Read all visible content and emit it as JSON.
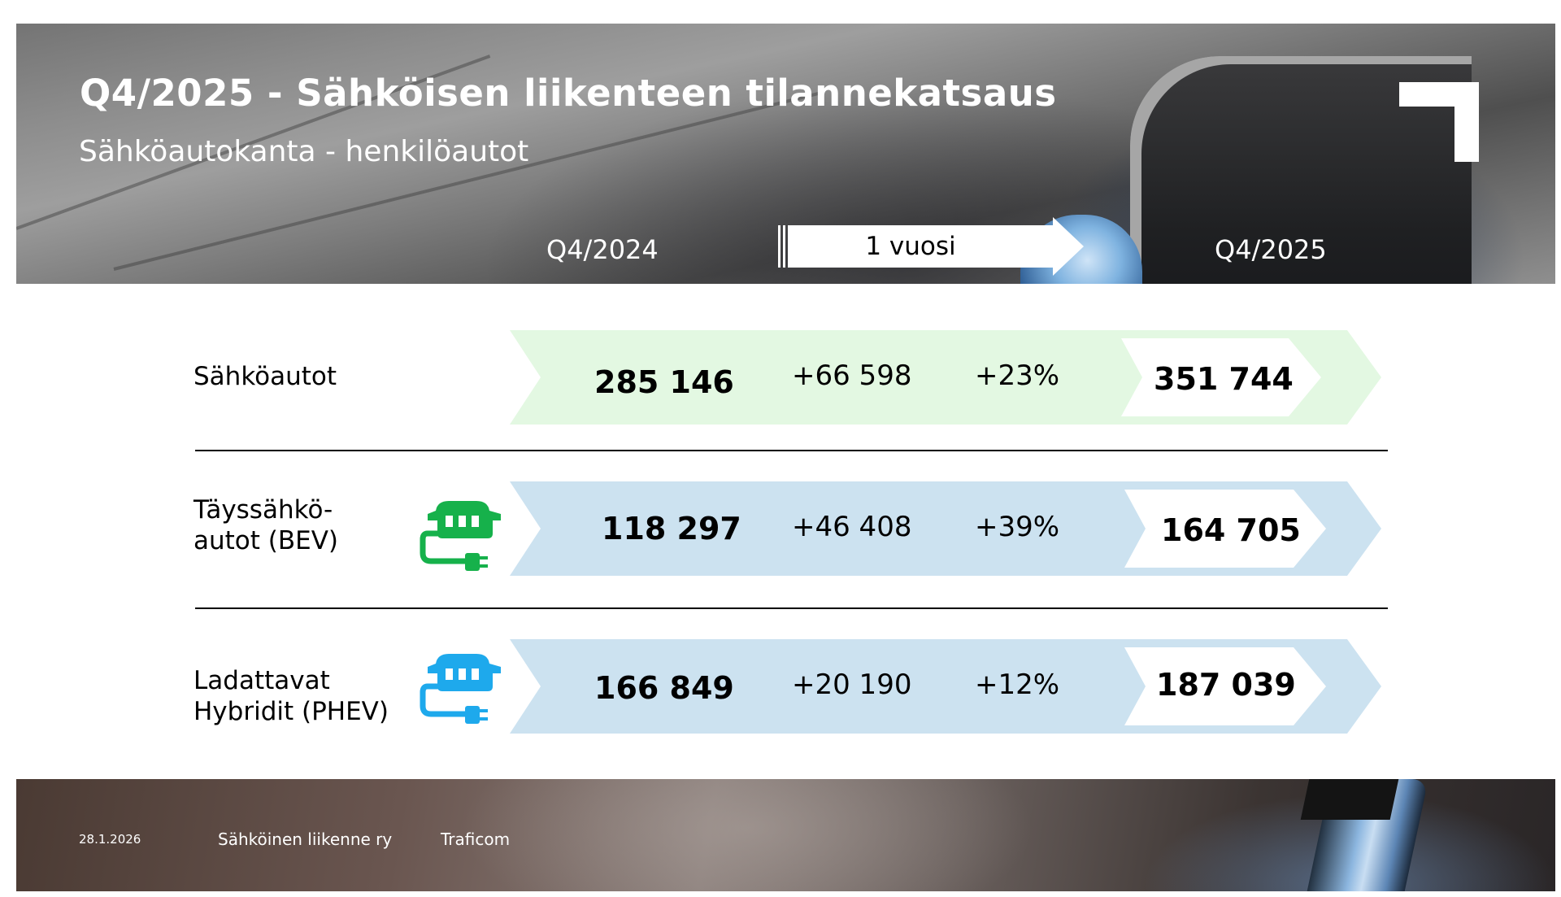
{
  "header": {
    "title": "Q4/2025 - Sähköisen liikenteen tilannekatsaus",
    "subtitle": "Sähköautokanta - henkilöautot",
    "period_from": "Q4/2024",
    "period_to": "Q4/2025",
    "arrow_label": "1 vuosi"
  },
  "rows": [
    {
      "label": "Sähköautot",
      "previous": "285 146",
      "change": "+66 598",
      "change_percent": "+23%",
      "current": "351 744",
      "band_color": "#e3f8e2",
      "icon": "none"
    },
    {
      "label": "Täyssähkö-\nautot (BEV)",
      "previous": "118 297",
      "change": "+46 408",
      "change_percent": "+39%",
      "current": "164 705",
      "band_color": "#cce2f0",
      "icon": "ev-charging-station-icon",
      "icon_color": "#16b14b"
    },
    {
      "label": "Ladattavat\nHybridit (PHEV)",
      "previous": "166 849",
      "change": "+20 190",
      "change_percent": "+12%",
      "current": "187 039",
      "band_color": "#cce2f0",
      "icon": "hybrid-charging-station-icon",
      "icon_color": "#1ea9ec"
    }
  ],
  "footer": {
    "date": "28.1.2026",
    "org_1": "Sähköinen liikenne ry",
    "org_2": "Traficom"
  }
}
